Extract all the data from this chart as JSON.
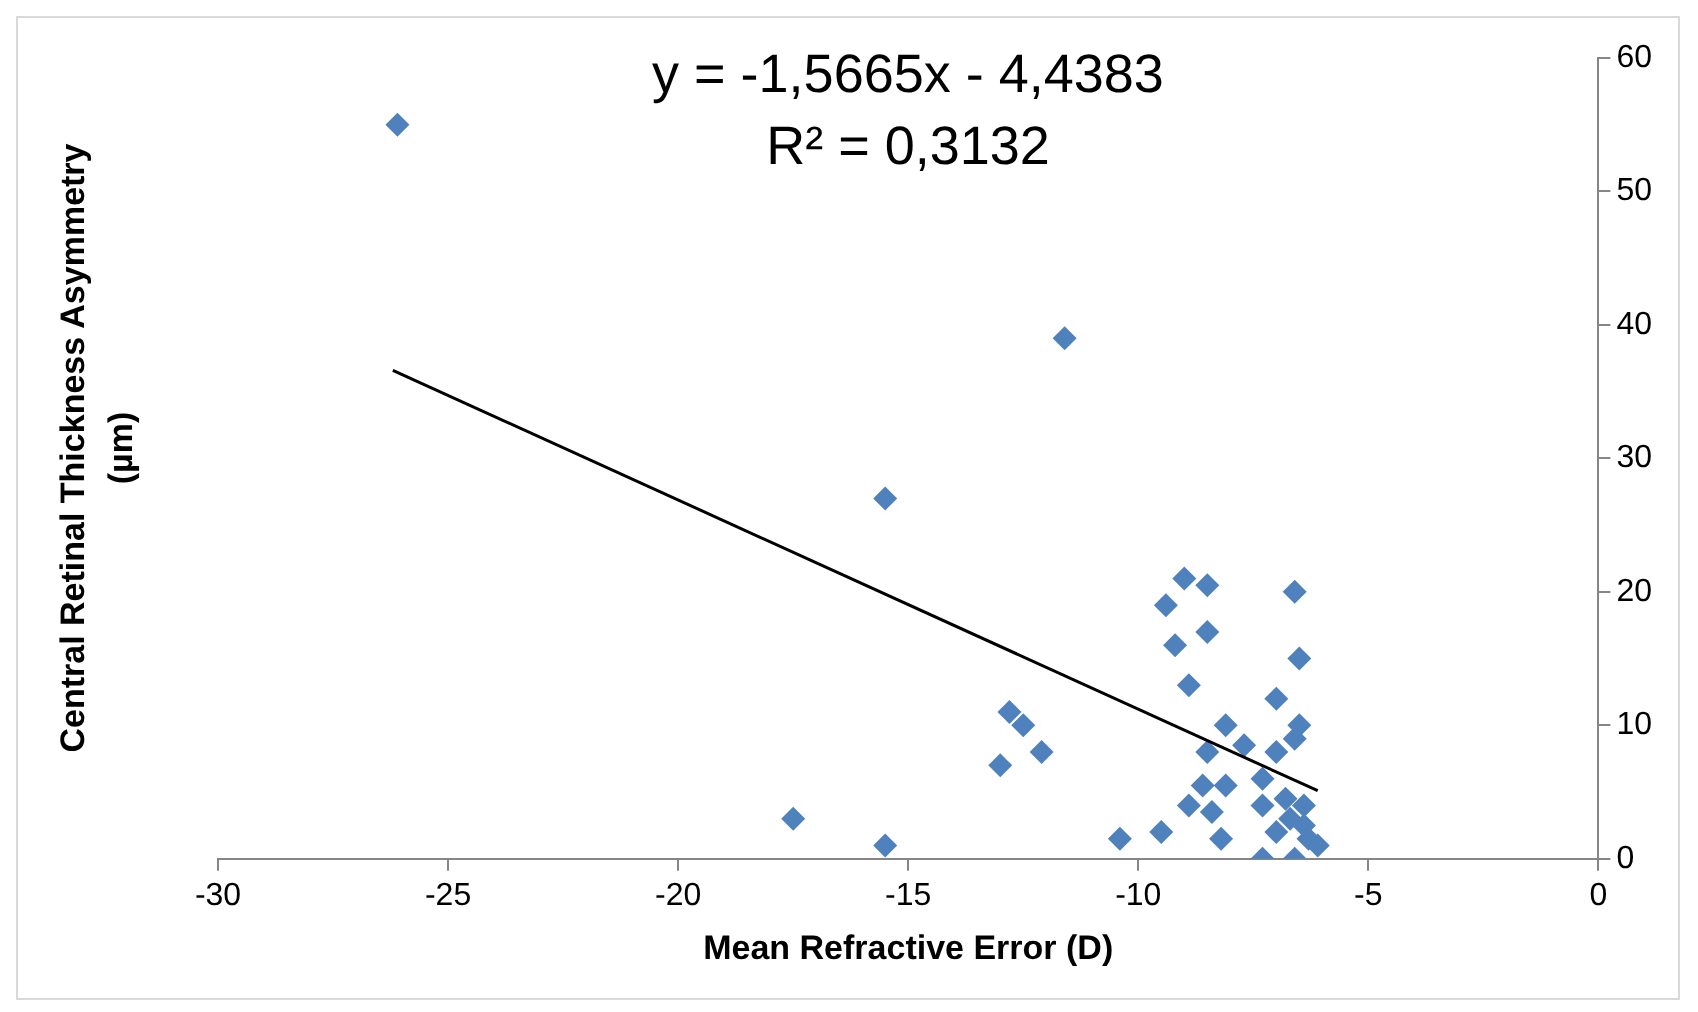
{
  "chart_data": {
    "type": "scatter",
    "xlabel": "Mean Refractive Error (D)",
    "ylabel": "Central Retinal Thickness Asymmetry (µm)",
    "annotations": [
      "y = -1,5665x - 4,4383",
      "R² = 0,3132"
    ],
    "xlim": [
      -30,
      0
    ],
    "xticks": [
      -30,
      -25,
      -20,
      -15,
      -10,
      -5,
      0
    ],
    "ylim": [
      0,
      60
    ],
    "yticks": [
      0,
      10,
      20,
      30,
      40,
      50,
      60
    ],
    "grid": false,
    "legend": false,
    "marker": "diamond",
    "series": [
      {
        "color": "#4f81bd",
        "x": [
          -26.1,
          -11.6,
          -15.5,
          -17.5,
          -15.5,
          -13.0,
          -12.8,
          -12.5,
          -12.1,
          -10.4,
          -9.5,
          -9.0,
          -8.5,
          -9.4,
          -9.2,
          -8.5,
          -8.9,
          -6.6,
          -6.5,
          -7.0,
          -6.5,
          -8.1,
          -7.7,
          -8.5,
          -8.9,
          -8.6,
          -8.1,
          -8.4,
          -8.2,
          -7.0,
          -6.6,
          -7.3,
          -7.3,
          -6.8,
          -6.4,
          -7.3,
          -6.6,
          -7.0,
          -6.4,
          -6.1,
          -6.3,
          -6.7
        ],
        "values": [
          55,
          39,
          27,
          3,
          1,
          7,
          11,
          10,
          8,
          1.5,
          2,
          21,
          20.5,
          19,
          16,
          17,
          13,
          20,
          15,
          12,
          10,
          10,
          8.5,
          8,
          4,
          5.5,
          5.5,
          3.5,
          1.5,
          8,
          9,
          6,
          4,
          4.5,
          4,
          0,
          0,
          2,
          2.5,
          1,
          1.5,
          3
        ]
      },
      {
        "type": "line",
        "color": "#000000",
        "marker": "none",
        "x": [
          -26.2,
          -6.1
        ],
        "values": [
          36.6,
          5.1
        ]
      }
    ]
  }
}
